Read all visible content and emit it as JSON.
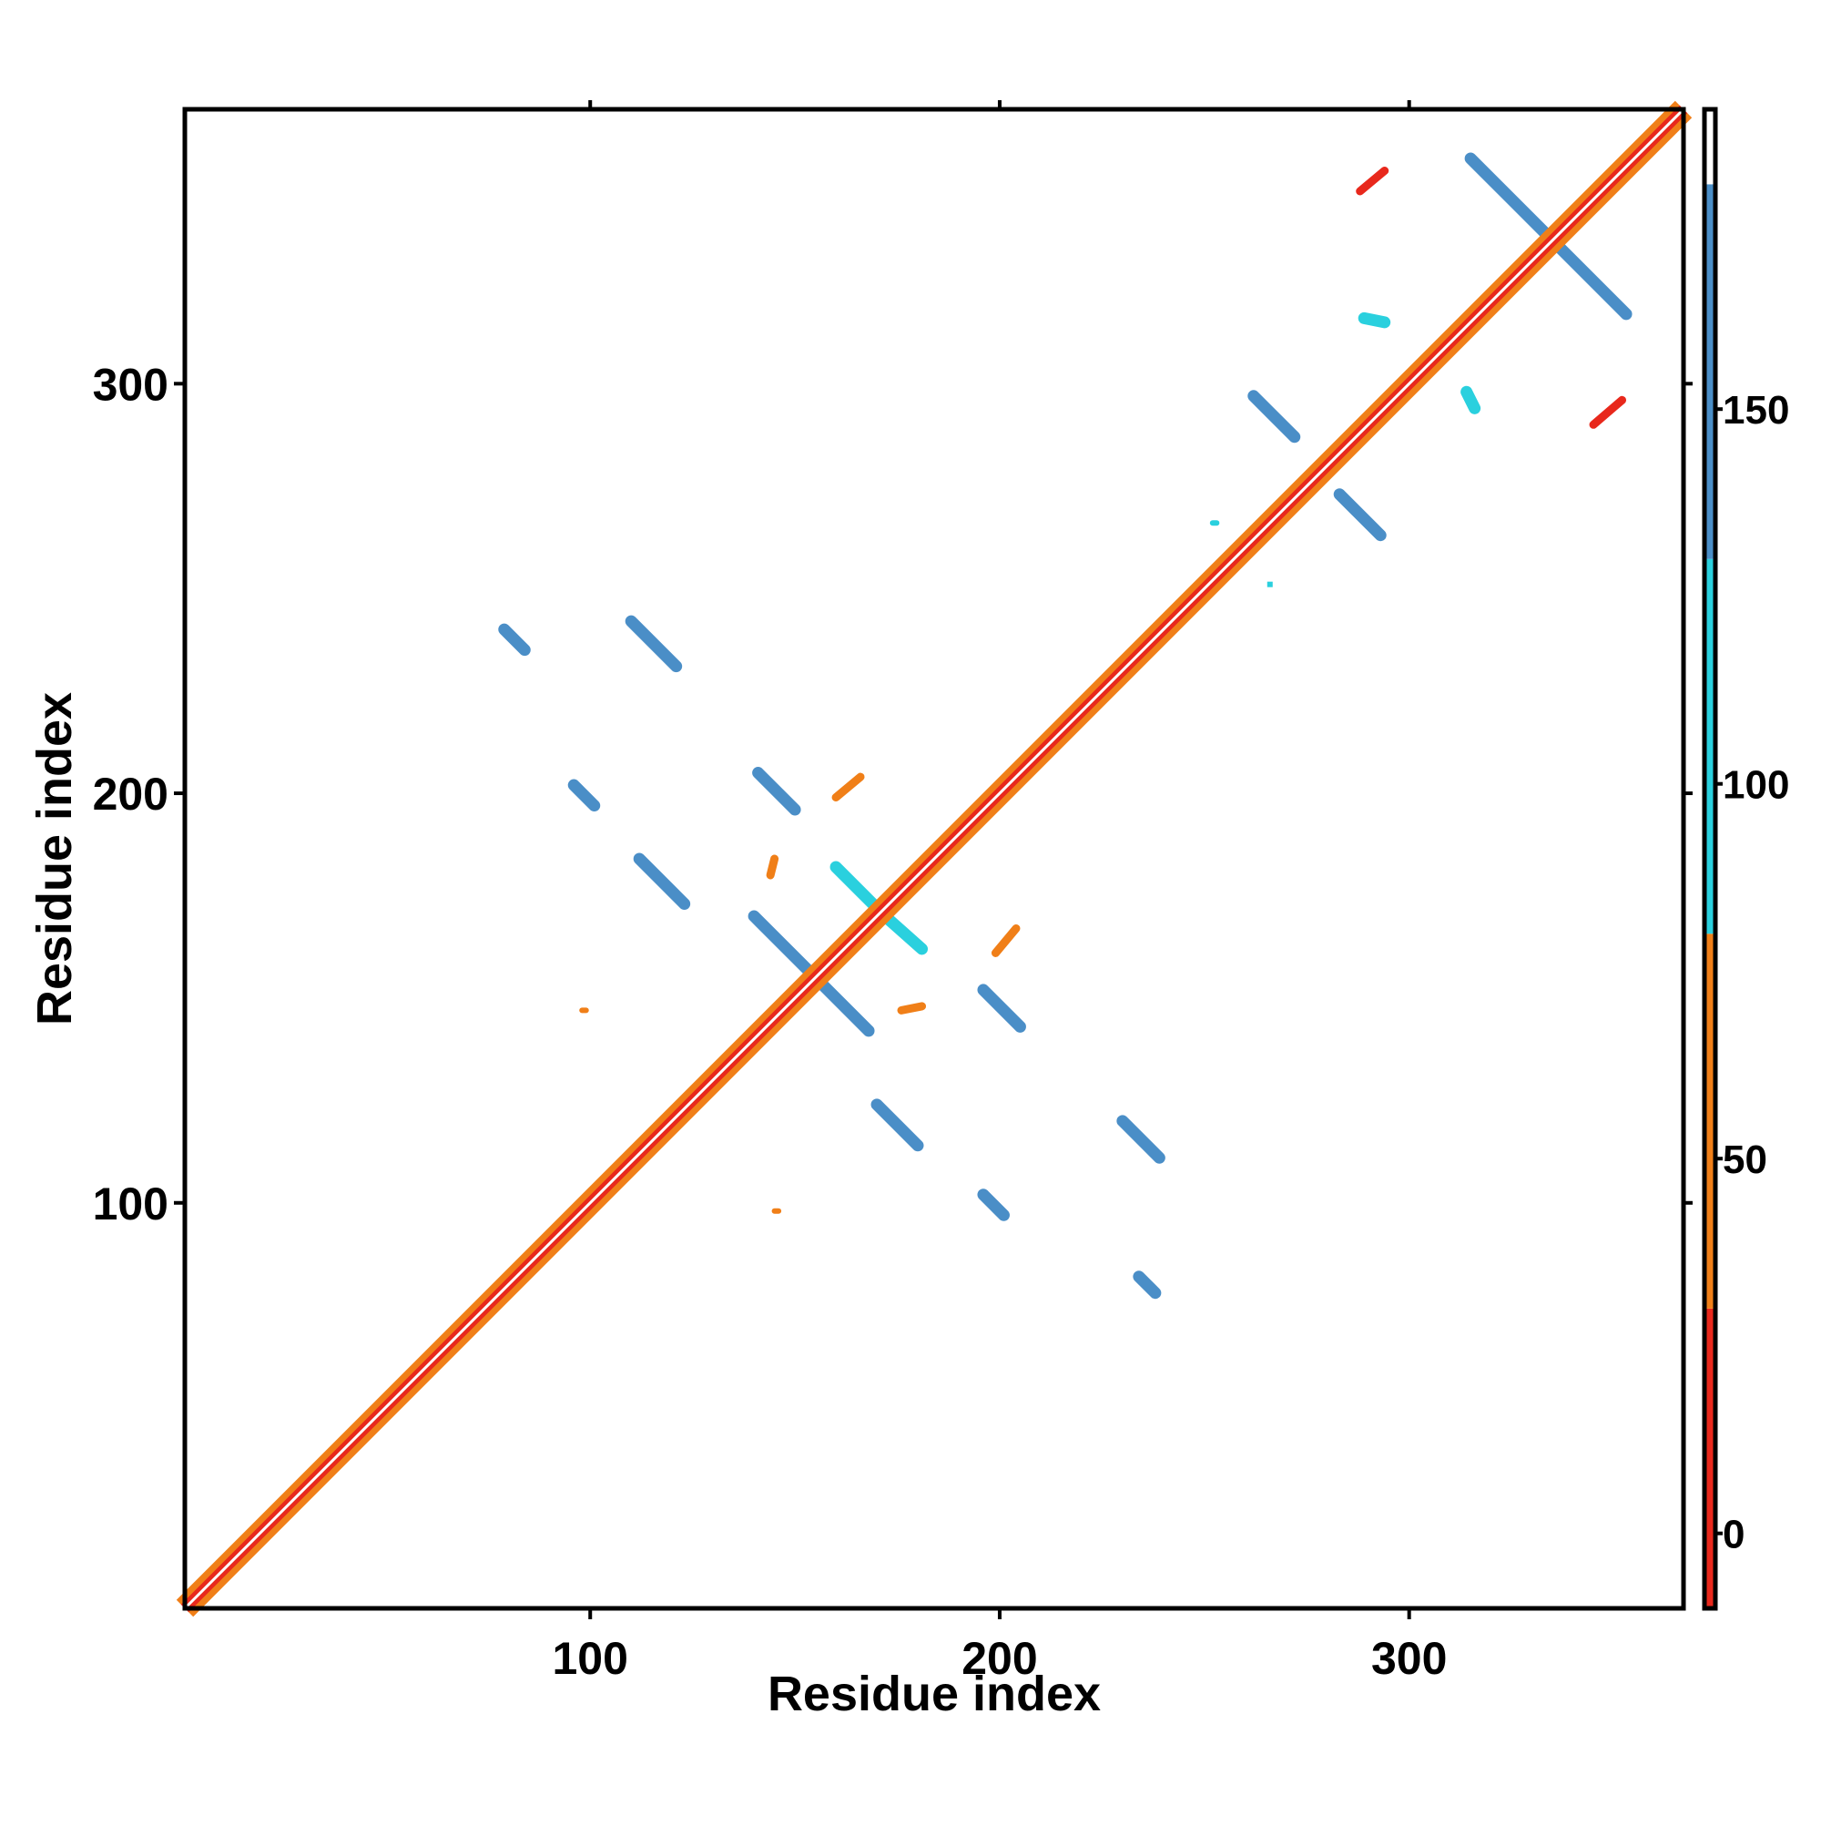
{
  "chart_data": {
    "type": "heatmap",
    "title": "",
    "xlabel": "Residue index",
    "ylabel": "Residue index",
    "xlim": [
      1,
      367
    ],
    "ylim": [
      1,
      367
    ],
    "x_ticks": [
      100,
      200,
      300
    ],
    "y_ticks": [
      100,
      200,
      300
    ],
    "grid": false,
    "colorbar": {
      "placement": "right",
      "range": [
        -10,
        190
      ],
      "ticks": [
        0,
        50,
        100,
        150
      ],
      "bands": [
        {
          "from": -10,
          "to": 30,
          "color": "#e8281c"
        },
        {
          "from": 30,
          "to": 80,
          "color": "#f07f18"
        },
        {
          "from": 80,
          "to": 130,
          "color": "#2ad0de"
        },
        {
          "from": 130,
          "to": 180,
          "color": "#4a8ec7"
        },
        {
          "from": 180,
          "to": 190,
          "color": "#ffffff"
        }
      ]
    },
    "diagonal": {
      "from": 1,
      "to": 367,
      "value": 5
    },
    "features": [
      {
        "x0": 20,
        "y0": 20,
        "x1": 35,
        "y1": 35,
        "value": 60
      },
      {
        "x0": 52,
        "y0": 52,
        "x1": 68,
        "y1": 68,
        "value": 60
      },
      {
        "x0": 177,
        "y0": 177,
        "x1": 190,
        "y1": 190,
        "value": 60
      },
      {
        "x0": 270,
        "y0": 270,
        "x1": 282,
        "y1": 282,
        "value": 60
      },
      {
        "x0": 140,
        "y0": 170,
        "x1": 168,
        "y1": 142,
        "value": 145
      },
      {
        "x0": 315,
        "y0": 355,
        "x1": 353,
        "y1": 317,
        "value": 145
      },
      {
        "x0": 110,
        "y0": 242,
        "x1": 121,
        "y1": 231,
        "value": 140
      },
      {
        "x0": 79,
        "y0": 240,
        "x1": 84,
        "y1": 235,
        "value": 150
      },
      {
        "x0": 141,
        "y0": 205,
        "x1": 150,
        "y1": 196,
        "value": 150
      },
      {
        "x0": 96,
        "y0": 202,
        "x1": 101,
        "y1": 197,
        "value": 150
      },
      {
        "x0": 112,
        "y0": 184,
        "x1": 123,
        "y1": 173,
        "value": 135
      },
      {
        "x0": 196,
        "y0": 152,
        "x1": 205,
        "y1": 143,
        "value": 150
      },
      {
        "x0": 170,
        "y0": 124,
        "x1": 180,
        "y1": 114,
        "value": 145
      },
      {
        "x0": 230,
        "y0": 120,
        "x1": 239,
        "y1": 111,
        "value": 150
      },
      {
        "x0": 196,
        "y0": 102,
        "x1": 201,
        "y1": 97,
        "value": 150
      },
      {
        "x0": 234,
        "y0": 82,
        "x1": 238,
        "y1": 78,
        "value": 150
      },
      {
        "x0": 262,
        "y0": 297,
        "x1": 272,
        "y1": 287,
        "value": 150
      },
      {
        "x0": 283,
        "y0": 273,
        "x1": 293,
        "y1": 263,
        "value": 150
      },
      {
        "x0": 160,
        "y0": 182,
        "x1": 172,
        "y1": 170,
        "value": 125
      },
      {
        "x0": 172,
        "y0": 170,
        "x1": 181,
        "y1": 162,
        "value": 125
      },
      {
        "x0": 288,
        "y0": 347,
        "x1": 294,
        "y1": 352,
        "value": 25
      },
      {
        "x0": 345,
        "y0": 290,
        "x1": 352,
        "y1": 296,
        "value": 25
      },
      {
        "x0": 160,
        "y0": 199,
        "x1": 166,
        "y1": 204,
        "value": 60
      },
      {
        "x0": 199,
        "y0": 161,
        "x1": 204,
        "y1": 167,
        "value": 60
      },
      {
        "x0": 176,
        "y0": 147,
        "x1": 181,
        "y1": 148,
        "value": 60
      },
      {
        "x0": 144,
        "y0": 180,
        "x1": 145,
        "y1": 184,
        "value": 60
      },
      {
        "x0": 98,
        "y0": 147,
        "x1": 99,
        "y1": 147,
        "value": 60
      },
      {
        "x0": 145,
        "y0": 98,
        "x1": 146,
        "y1": 98,
        "value": 60
      },
      {
        "x0": 314,
        "y0": 298,
        "x1": 316,
        "y1": 294,
        "value": 110
      },
      {
        "x0": 289,
        "y0": 316,
        "x1": 294,
        "y1": 315,
        "value": 110
      },
      {
        "x0": 252,
        "y0": 266,
        "x1": 253,
        "y1": 266,
        "value": 110
      },
      {
        "x0": 266,
        "y0": 251,
        "x1": 266,
        "y1": 251,
        "value": 110
      }
    ]
  }
}
